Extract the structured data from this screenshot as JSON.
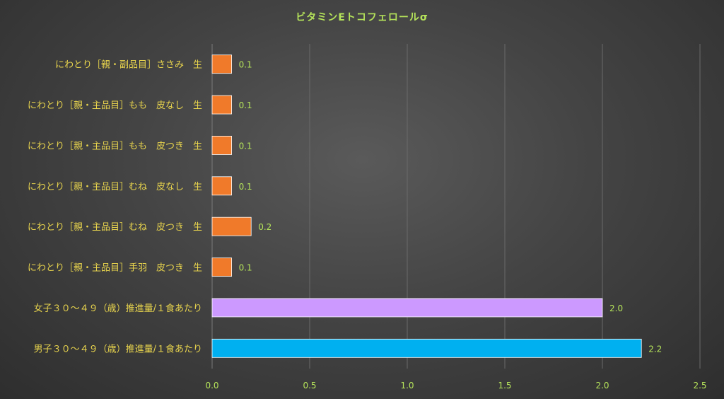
{
  "chart_data": {
    "type": "bar",
    "orientation": "horizontal",
    "title": "ビタミンEトコフェロールσ",
    "categories": [
      "にわとり［親・副品目］ささみ　生",
      "にわとり［親・主品目］もも　皮なし　生",
      "にわとり［親・主品目］もも　皮つき　生",
      "にわとり［親・主品目］むね　皮なし　生",
      "にわとり［親・主品目］むね　皮つき　生",
      "にわとり［親・主品目］手羽　皮つき　生",
      "女子３０～４９（歳）推進量/１食あたり",
      "男子３０～４９（歳）推進量/１食あたり"
    ],
    "values": [
      0.1,
      0.1,
      0.1,
      0.1,
      0.2,
      0.1,
      2.0,
      2.2
    ],
    "value_labels": [
      "0.1",
      "0.1",
      "0.1",
      "0.1",
      "0.2",
      "0.1",
      "2.0",
      "2.2"
    ],
    "bar_colors": [
      "#f07a2a",
      "#f07a2a",
      "#f07a2a",
      "#f07a2a",
      "#f07a2a",
      "#f07a2a",
      "#cc99ff",
      "#00b0f0"
    ],
    "xlim": [
      0,
      2.5
    ],
    "xticks": [
      "0.0",
      "0.5",
      "1.0",
      "1.5",
      "2.0",
      "2.5"
    ],
    "xtick_values": [
      0,
      0.5,
      1.0,
      1.5,
      2.0,
      2.5
    ],
    "grid": "vertical",
    "xlabel": "",
    "ylabel": ""
  },
  "colors": {
    "background": "#3c3c3c",
    "title": "#b5e35a",
    "category_label": "#e8d44d",
    "tick_label": "#b5e35a",
    "gridline": "#6a6a6a"
  }
}
